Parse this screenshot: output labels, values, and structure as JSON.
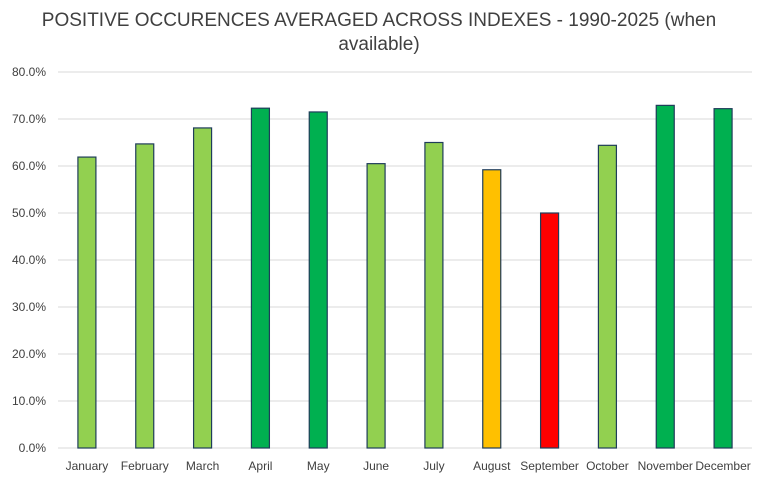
{
  "chart_data": {
    "type": "bar",
    "title_lines": [
      "POSITIVE OCCURENCES AVERAGED ACROSS INDEXES - 1990-2025 (when",
      "available)"
    ],
    "xlabel": "",
    "ylabel": "",
    "ylim": [
      0,
      80
    ],
    "y_ticks": [
      0,
      10,
      20,
      30,
      40,
      50,
      60,
      70,
      80
    ],
    "y_tick_labels": [
      "0.0%",
      "10.0%",
      "20.0%",
      "30.0%",
      "40.0%",
      "50.0%",
      "60.0%",
      "70.0%",
      "80.0%"
    ],
    "grid": true,
    "legend": "none",
    "categories": [
      "January",
      "February",
      "March",
      "April",
      "May",
      "June",
      "July",
      "August",
      "September",
      "October",
      "November",
      "December"
    ],
    "values": [
      61.9,
      64.7,
      68.1,
      72.3,
      71.5,
      60.5,
      65.0,
      59.2,
      50.0,
      64.4,
      72.9,
      72.2
    ],
    "bar_colors": [
      "#92d050",
      "#92d050",
      "#92d050",
      "#00b050",
      "#00b050",
      "#92d050",
      "#92d050",
      "#ffc000",
      "#ff0000",
      "#92d050",
      "#00b050",
      "#00b050"
    ]
  }
}
